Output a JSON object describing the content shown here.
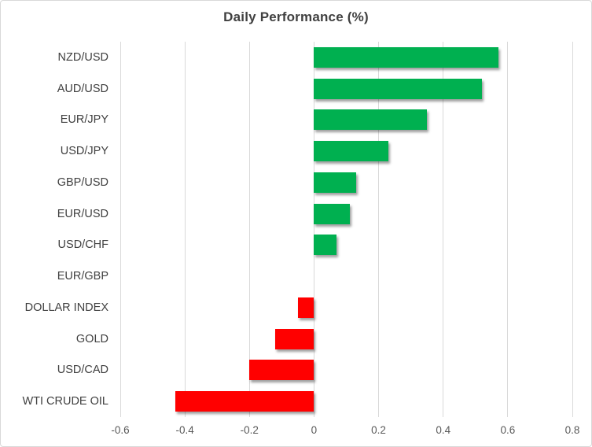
{
  "chart_data": {
    "type": "bar",
    "orientation": "horizontal",
    "title": "Daily Performance (%)",
    "categories": [
      "NZD/USD",
      "AUD/USD",
      "EUR/JPY",
      "USD/JPY",
      "GBP/USD",
      "EUR/USD",
      "USD/CHF",
      "EUR/GBP",
      "DOLLAR INDEX",
      "GOLD",
      "USD/CAD",
      "WTI CRUDE OIL"
    ],
    "values": [
      0.57,
      0.52,
      0.35,
      0.23,
      0.13,
      0.11,
      0.07,
      0.0,
      -0.05,
      -0.12,
      -0.2,
      -0.43
    ],
    "xlabel": "",
    "ylabel": "",
    "xlim": [
      -0.6,
      0.8
    ],
    "xticks": [
      -0.6,
      -0.4,
      -0.2,
      0,
      0.2,
      0.4,
      0.6,
      0.8
    ],
    "xtick_labels": [
      "-0.6",
      "-0.4",
      "-0.2",
      "0",
      "0.2",
      "0.4",
      "0.6",
      "0.8"
    ],
    "grid": "vertical",
    "legend": "none",
    "colors": {
      "positive": "#00B050",
      "negative": "#FF0000",
      "gridline": "#D9D9D9",
      "title_text": "#404040",
      "category_text": "#404040",
      "tick_text": "#595959",
      "border": "#D9D9D9",
      "background": "#FFFFFF"
    }
  }
}
